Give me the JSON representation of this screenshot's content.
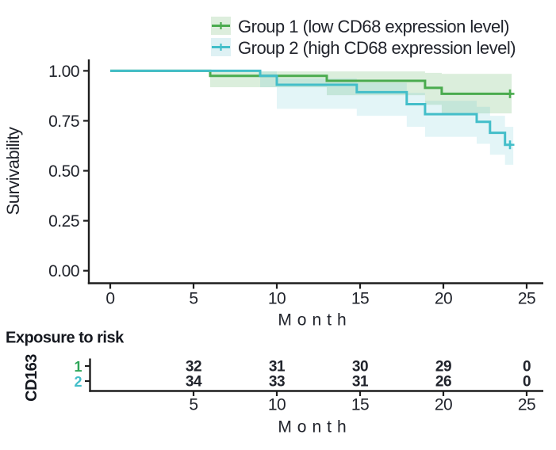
{
  "chart_data": {
    "type": "line",
    "subtype": "kaplan-meier-step-with-confidence-bands",
    "title": "",
    "xlabel": "Month",
    "ylabel": "Survivability",
    "xlim": [
      -1.1,
      26
    ],
    "ylim": [
      0,
      1.06
    ],
    "grid": false,
    "legend_position": "top",
    "x_ticks": [
      0,
      5,
      10,
      15,
      20,
      25
    ],
    "y_ticks": [
      {
        "value": 1.0,
        "label": "1.00"
      },
      {
        "value": 0.75,
        "label": "0.75"
      },
      {
        "value": 0.5,
        "label": "0.50"
      },
      {
        "value": 0.25,
        "label": "0.25"
      },
      {
        "value": 0.0,
        "label": "0.00"
      }
    ],
    "series": [
      {
        "name": "Group 1 (low CD68 expression level)",
        "color": "#4aab4e",
        "ribbon_color": "rgba(74,171,78,0.20)",
        "key_fill": "#ddeedd",
        "steps": [
          {
            "t": 0,
            "s": 1.0
          },
          {
            "t": 6.0,
            "s": 0.975
          },
          {
            "t": 13.0,
            "s": 0.95
          },
          {
            "t": 18.9,
            "s": 0.915
          },
          {
            "t": 19.9,
            "s": 0.885
          }
        ],
        "end_t": 24.1,
        "censor": {
          "t": 24,
          "s": 0.885
        },
        "ribbon": [
          [
            6.0,
            13.0,
            0.997,
            0.918
          ],
          [
            13.0,
            18.9,
            0.997,
            0.878
          ],
          [
            18.9,
            19.9,
            0.99,
            0.83
          ],
          [
            19.9,
            24.1,
            0.985,
            0.787
          ]
        ]
      },
      {
        "name": "Group 2 (high CD68 expression level)",
        "color": "#43bec9",
        "ribbon_color": "rgba(67,190,201,0.15)",
        "key_fill": "#def1f4",
        "steps": [
          {
            "t": 0,
            "s": 1.0
          },
          {
            "t": 9.0,
            "s": 0.975
          },
          {
            "t": 10.0,
            "s": 0.93
          },
          {
            "t": 14.8,
            "s": 0.893
          },
          {
            "t": 17.8,
            "s": 0.833
          },
          {
            "t": 18.9,
            "s": 0.783
          },
          {
            "t": 22.0,
            "s": 0.745
          },
          {
            "t": 22.8,
            "s": 0.69
          },
          {
            "t": 23.7,
            "s": 0.63
          }
        ],
        "end_t": 24.1,
        "censor": {
          "t": 24,
          "s": 0.63
        },
        "ribbon": [
          [
            9.0,
            10.0,
            0.997,
            0.918
          ],
          [
            10.0,
            14.8,
            0.962,
            0.81
          ],
          [
            14.8,
            17.8,
            0.94,
            0.775
          ],
          [
            17.8,
            18.9,
            0.89,
            0.72
          ],
          [
            18.9,
            22.0,
            0.85,
            0.67
          ],
          [
            22.0,
            22.8,
            0.82,
            0.635
          ],
          [
            22.8,
            23.7,
            0.775,
            0.58
          ],
          [
            23.7,
            24.2,
            0.72,
            0.53
          ]
        ]
      }
    ],
    "risk_table": {
      "title": "Exposure to risk",
      "axis_label": "CD163",
      "xlabel": "Month",
      "columns": [
        5,
        10,
        15,
        20,
        25
      ],
      "rows": [
        {
          "label": "1",
          "color": "#2ea558",
          "counts": [
            32,
            31,
            30,
            29,
            0
          ]
        },
        {
          "label": "2",
          "color": "#43bec9",
          "counts": [
            34,
            33,
            31,
            26,
            0
          ]
        }
      ]
    }
  }
}
